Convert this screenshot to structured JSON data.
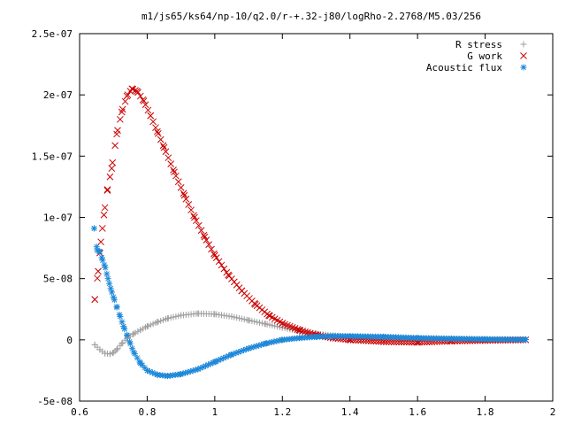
{
  "chart_data": {
    "type": "scatter",
    "title": "m1/js65/ks64/np-10/q2.0/r-+.32-j80/logRho-2.2768/M5.03/256",
    "xlim": [
      0.6,
      2.0
    ],
    "ylim": [
      -5e-08,
      2.5e-07
    ],
    "x_ticks": [
      0.6,
      0.8,
      1.0,
      1.2,
      1.4,
      1.6,
      1.8,
      2.0
    ],
    "x_tick_labels": [
      "0.6",
      "0.8",
      "1",
      "1.2",
      "1.4",
      "1.6",
      "1.8",
      "2"
    ],
    "y_ticks": [
      -5e-08,
      0,
      5e-08,
      1e-07,
      1.5e-07,
      2e-07,
      2.5e-07
    ],
    "y_tick_labels": [
      "-5e-08",
      "0",
      "5e-08",
      "1e-07",
      "1.5e-07",
      "2e-07",
      "2.5e-07"
    ],
    "legend_position": "top-right",
    "grid": false,
    "series": [
      {
        "name": "R stress",
        "marker": "plus",
        "color": "#a0a0a0",
        "x": [
          0.645,
          0.66,
          0.675,
          0.69,
          0.7,
          0.71,
          0.725,
          0.74,
          0.76,
          0.78,
          0.8,
          0.83,
          0.86,
          0.9,
          0.95,
          1.0,
          1.05,
          1.1,
          1.15,
          1.2,
          1.25,
          1.3,
          1.35,
          1.4,
          1.5,
          1.6,
          1.7,
          1.8,
          1.92
        ],
        "y": [
          -4e-09,
          -8e-09,
          -1.1e-08,
          -1.15e-08,
          -1.05e-08,
          -8e-09,
          -3e-09,
          1e-09,
          5e-09,
          8e-09,
          1.1e-08,
          1.45e-08,
          1.75e-08,
          2e-08,
          2.15e-08,
          2.1e-08,
          1.9e-08,
          1.6e-08,
          1.3e-08,
          1e-08,
          7e-09,
          5e-09,
          3.5e-09,
          2.5e-09,
          1.5e-09,
          1e-09,
          6e-10,
          4e-10,
          2e-10
        ]
      },
      {
        "name": "G work",
        "marker": "cross",
        "color": "#cc0000",
        "x": [
          0.645,
          0.655,
          0.663,
          0.672,
          0.682,
          0.695,
          0.71,
          0.725,
          0.74,
          0.755,
          0.77,
          0.79,
          0.81,
          0.83,
          0.85,
          0.88,
          0.91,
          0.94,
          0.97,
          1.0,
          1.04,
          1.08,
          1.12,
          1.16,
          1.2,
          1.25,
          1.3,
          1.35,
          1.4,
          1.5,
          1.6,
          1.7,
          1.8,
          1.92
        ],
        "y": [
          3.3e-08,
          5.6e-08,
          8e-08,
          1.02e-07,
          1.22e-07,
          1.4e-07,
          1.68e-07,
          1.86e-07,
          1.99e-07,
          2.05e-07,
          2.03e-07,
          1.95e-07,
          1.83e-07,
          1.7e-07,
          1.57e-07,
          1.37e-07,
          1.18e-07,
          1e-07,
          8.4e-08,
          6.9e-08,
          5.3e-08,
          4e-08,
          2.9e-08,
          2e-08,
          1.35e-08,
          8e-09,
          4e-09,
          1.5e-09,
          0,
          -1.5e-09,
          -2e-09,
          -1e-09,
          -5e-10,
          0
        ]
      },
      {
        "name": "Acoustic flux",
        "marker": "star",
        "color": "#1e88d8",
        "x": [
          0.643,
          0.652,
          0.66,
          0.668,
          0.676,
          0.684,
          0.692,
          0.7,
          0.71,
          0.72,
          0.73,
          0.74,
          0.75,
          0.76,
          0.78,
          0.8,
          0.83,
          0.86,
          0.9,
          0.95,
          1.0,
          1.05,
          1.1,
          1.15,
          1.2,
          1.25,
          1.3,
          1.35,
          1.4,
          1.5,
          1.6,
          1.7,
          1.8,
          1.92
        ],
        "y": [
          9.1e-08,
          7.3e-08,
          7.2e-08,
          6.5e-08,
          5.9e-08,
          5e-08,
          4.2e-08,
          3.5e-08,
          2.7e-08,
          1.9e-08,
          1.1e-08,
          4e-09,
          -3e-09,
          -1e-08,
          -1.9e-08,
          -2.5e-08,
          -2.85e-08,
          -2.95e-08,
          -2.8e-08,
          -2.4e-08,
          -1.8e-08,
          -1.2e-08,
          -7e-09,
          -3e-09,
          0,
          1.5e-09,
          2.5e-09,
          3e-09,
          3e-09,
          2.5e-09,
          1.5e-09,
          1e-09,
          5e-10,
          2e-10
        ]
      }
    ]
  }
}
